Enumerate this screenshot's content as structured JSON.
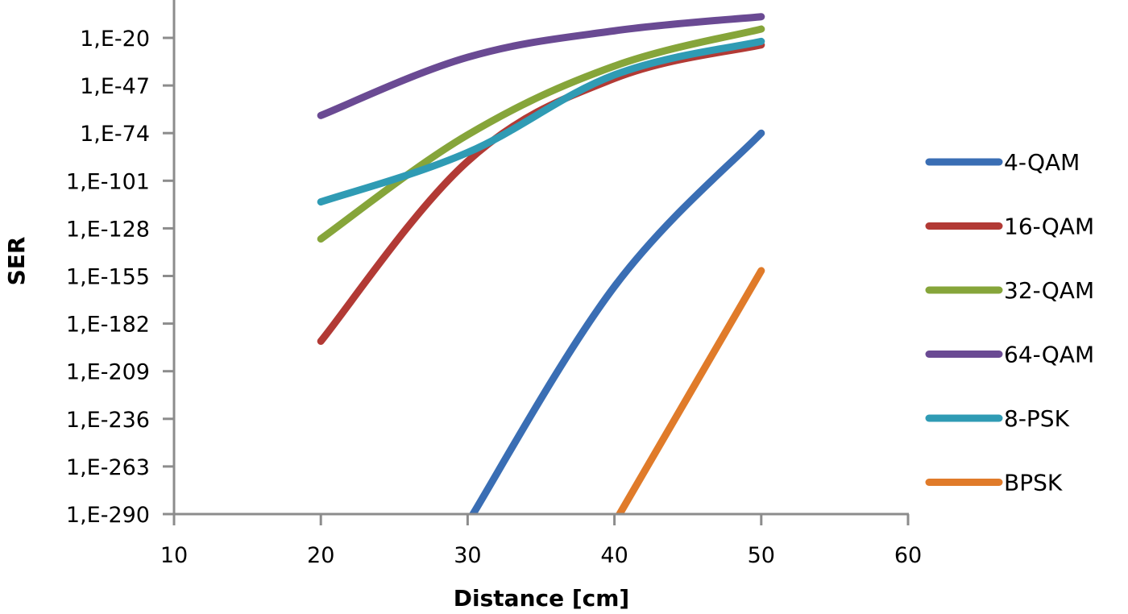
{
  "chart_data": {
    "type": "line",
    "title": "",
    "xlabel": "Distance [cm]",
    "ylabel": "SER",
    "x_scale": "linear",
    "y_scale": "log",
    "xlim": [
      10,
      60
    ],
    "x_ticks": [
      10,
      20,
      30,
      40,
      50,
      60
    ],
    "y_ticks_exponent": [
      -20,
      -47,
      -74,
      -101,
      -128,
      -155,
      -182,
      -209,
      -236,
      -263,
      -290
    ],
    "y_tick_labels": [
      "1,E-20",
      "1,E-47",
      "1,E-74",
      "1,E-101",
      "1,E-128",
      "1,E-155",
      "1,E-182",
      "1,E-209",
      "1,E-236",
      "1,E-263",
      "1,E-290"
    ],
    "ylim_exponent": [
      -290,
      -7
    ],
    "grid": false,
    "legend_position": "right",
    "x": [
      20,
      30,
      40,
      50
    ],
    "series": [
      {
        "name": "4-QAM",
        "color": "#3a6eb4",
        "values_exponent": [
          null,
          -295,
          -161,
          -74
        ]
      },
      {
        "name": "16-QAM",
        "color": "#b23a35",
        "values_exponent": [
          -192,
          -90,
          -43,
          -24
        ]
      },
      {
        "name": "32-QAM",
        "color": "#86a53a",
        "values_exponent": [
          -134,
          -75,
          -36,
          -15
        ]
      },
      {
        "name": "64-QAM",
        "color": "#6a4a93",
        "values_exponent": [
          -64,
          -31,
          -16,
          -8
        ]
      },
      {
        "name": "8-PSK",
        "color": "#2f9bb4",
        "values_exponent": [
          -113,
          -85,
          -41,
          -22
        ]
      },
      {
        "name": "BPSK",
        "color": "#e07b2a",
        "values_exponent": [
          null,
          null,
          -295,
          -152
        ]
      }
    ]
  }
}
